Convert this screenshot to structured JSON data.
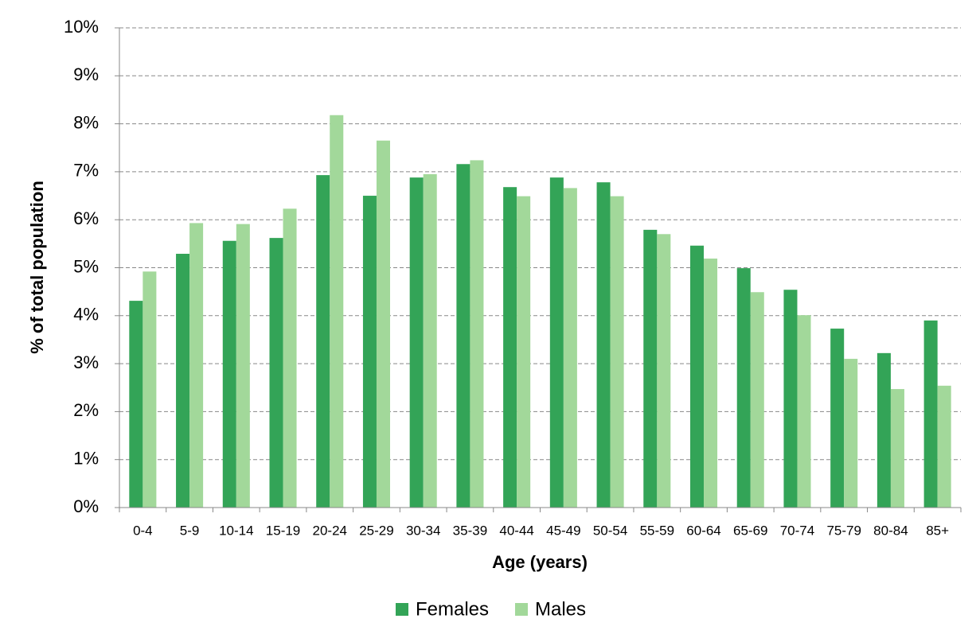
{
  "chart_data": {
    "type": "bar",
    "x_label": "Age (years)",
    "y_label": "% of total population",
    "categories": [
      "0-4",
      "5-9",
      "10-14",
      "15-19",
      "20-24",
      "25-29",
      "30-34",
      "35-39",
      "40-44",
      "45-49",
      "50-54",
      "55-59",
      "60-64",
      "65-69",
      "70-74",
      "75-79",
      "80-84",
      "85+"
    ],
    "series": [
      {
        "name": "Females",
        "color": "#33a457",
        "values": [
          4.31,
          5.29,
          5.56,
          5.62,
          6.93,
          6.5,
          6.88,
          7.16,
          6.68,
          6.88,
          6.78,
          5.79,
          5.46,
          4.99,
          4.54,
          3.73,
          3.22,
          3.9
        ]
      },
      {
        "name": "Males",
        "color": "#a2d89a",
        "values": [
          4.92,
          5.93,
          5.91,
          6.23,
          8.18,
          7.65,
          6.95,
          7.24,
          6.49,
          6.66,
          6.49,
          5.7,
          5.19,
          4.49,
          4.01,
          3.1,
          2.47,
          2.54
        ]
      }
    ],
    "ylim": [
      0,
      10
    ],
    "yticks": [
      {
        "value": 0,
        "label": "0%"
      },
      {
        "value": 1,
        "label": "1%"
      },
      {
        "value": 2,
        "label": "2%"
      },
      {
        "value": 3,
        "label": "3%"
      },
      {
        "value": 4,
        "label": "4%"
      },
      {
        "value": 5,
        "label": "5%"
      },
      {
        "value": 6,
        "label": "6%"
      },
      {
        "value": 7,
        "label": "7%"
      },
      {
        "value": 8,
        "label": "8%"
      },
      {
        "value": 9,
        "label": "9%"
      },
      {
        "value": 10,
        "label": "10%"
      }
    ],
    "grid": true,
    "legend": "bottom"
  }
}
